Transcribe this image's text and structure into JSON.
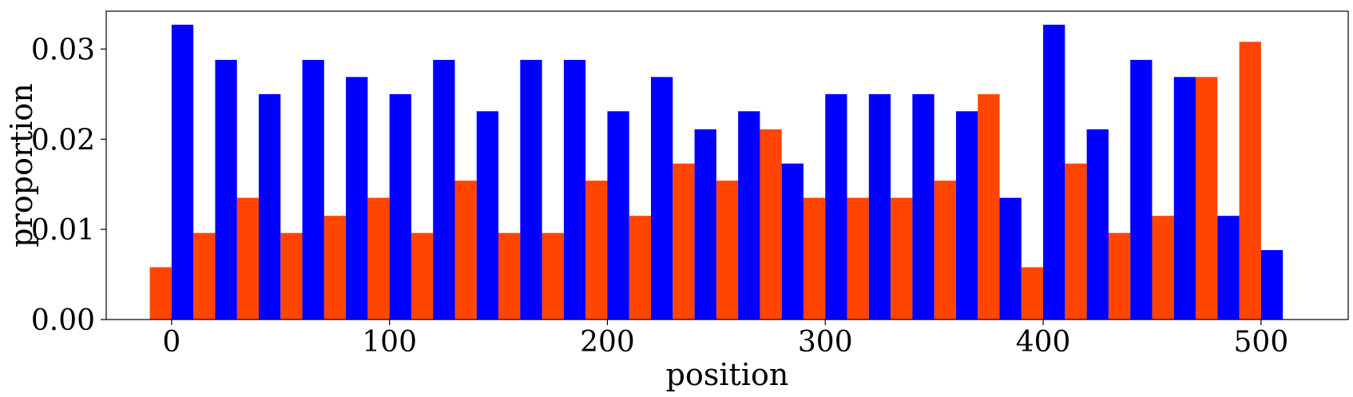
{
  "chart_data": {
    "type": "bar",
    "xlabel": "position",
    "ylabel": "proportion",
    "xlim": [
      -30,
      540
    ],
    "ylim": [
      0,
      0.0342
    ],
    "grid": false,
    "legend": "none",
    "bin_width": 20,
    "x": [
      0,
      20,
      40,
      60,
      80,
      100,
      120,
      140,
      160,
      180,
      200,
      220,
      240,
      260,
      280,
      300,
      320,
      340,
      360,
      380,
      400,
      420,
      440,
      460,
      480,
      500
    ],
    "xticks": [
      0,
      100,
      200,
      300,
      400,
      500
    ],
    "xtick_labels": [
      "0",
      "100",
      "200",
      "300",
      "400",
      "500"
    ],
    "yticks": [
      0,
      0.01,
      0.02,
      0.03
    ],
    "ytick_labels": [
      "0.00",
      "0.01",
      "0.02",
      "0.03"
    ],
    "series": [
      {
        "color": "#ff4500",
        "values": [
          0.0058,
          0.0096,
          0.0135,
          0.0096,
          0.0115,
          0.0135,
          0.0096,
          0.0154,
          0.0096,
          0.0096,
          0.0154,
          0.0115,
          0.0173,
          0.0154,
          0.0211,
          0.0135,
          0.0135,
          0.0135,
          0.0154,
          0.025,
          0.0058,
          0.0173,
          0.0096,
          0.0115,
          0.0269,
          0.0308
        ]
      },
      {
        "color": "#0000ff",
        "values": [
          0.0327,
          0.0288,
          0.025,
          0.0288,
          0.0269,
          0.025,
          0.0288,
          0.0231,
          0.0288,
          0.0288,
          0.0231,
          0.0269,
          0.0211,
          0.0231,
          0.0173,
          0.025,
          0.025,
          0.025,
          0.0231,
          0.0135,
          0.0327,
          0.0211,
          0.0288,
          0.0269,
          0.0115,
          0.0077
        ]
      }
    ]
  }
}
